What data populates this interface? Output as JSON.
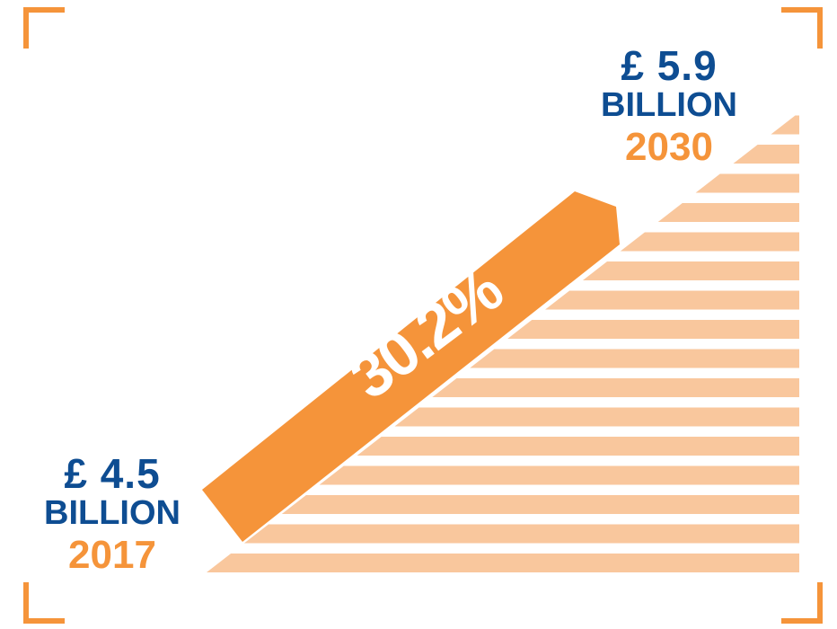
{
  "start": {
    "amount": "£ 4.5",
    "unit": "BILLION",
    "year": "2017",
    "value_billion": 4.5
  },
  "end": {
    "amount": "£ 5.9",
    "unit": "BILLION",
    "year": "2030",
    "value_billion": 5.9
  },
  "growth_label": "30.2%",
  "colors": {
    "navy": "#0e4d92",
    "orange": "#f5943a",
    "stripe": "#f9c79d",
    "white": "#ffffff"
  }
}
